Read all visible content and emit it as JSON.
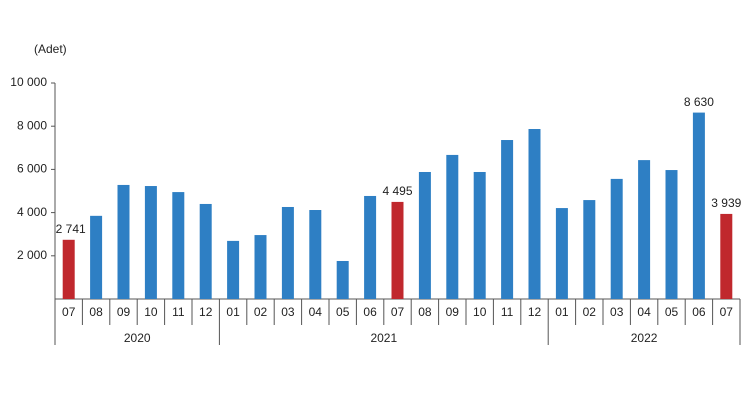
{
  "chart_data": {
    "type": "bar",
    "y_unit": "(Adet)",
    "groups": [
      {
        "label": "2020",
        "categories": [
          "07",
          "08",
          "09",
          "10",
          "11",
          "12"
        ]
      },
      {
        "label": "2021",
        "categories": [
          "01",
          "02",
          "03",
          "04",
          "05",
          "06",
          "07",
          "08",
          "09",
          "10",
          "11",
          "12"
        ]
      },
      {
        "label": "2022",
        "categories": [
          "01",
          "02",
          "03",
          "04",
          "05",
          "06",
          "07"
        ]
      }
    ],
    "values": [
      2741,
      3850,
      5280,
      5230,
      4950,
      4400,
      2690,
      2960,
      4260,
      4120,
      1760,
      4770,
      4495,
      5880,
      6670,
      5880,
      7360,
      7870,
      4210,
      4580,
      5560,
      6430,
      5970,
      8630,
      3939
    ],
    "value_labels": [
      "2 741",
      null,
      null,
      null,
      null,
      null,
      null,
      null,
      null,
      null,
      null,
      null,
      "4 495",
      null,
      null,
      null,
      null,
      null,
      null,
      null,
      null,
      null,
      null,
      "8 630",
      "3 939"
    ],
    "colors": [
      "#c0282d",
      "#2e7fc4",
      "#2e7fc4",
      "#2e7fc4",
      "#2e7fc4",
      "#2e7fc4",
      "#2e7fc4",
      "#2e7fc4",
      "#2e7fc4",
      "#2e7fc4",
      "#2e7fc4",
      "#2e7fc4",
      "#c0282d",
      "#2e7fc4",
      "#2e7fc4",
      "#2e7fc4",
      "#2e7fc4",
      "#2e7fc4",
      "#2e7fc4",
      "#2e7fc4",
      "#2e7fc4",
      "#2e7fc4",
      "#2e7fc4",
      "#2e7fc4",
      "#c0282d"
    ],
    "ylim": [
      0,
      10000
    ],
    "yticks": [
      {
        "value": 2000,
        "label": "2 000"
      },
      {
        "value": 4000,
        "label": "4 000"
      },
      {
        "value": 6000,
        "label": "6 000"
      },
      {
        "value": 8000,
        "label": "8 000"
      },
      {
        "value": 10000,
        "label": "10 000"
      }
    ],
    "grid": false
  }
}
